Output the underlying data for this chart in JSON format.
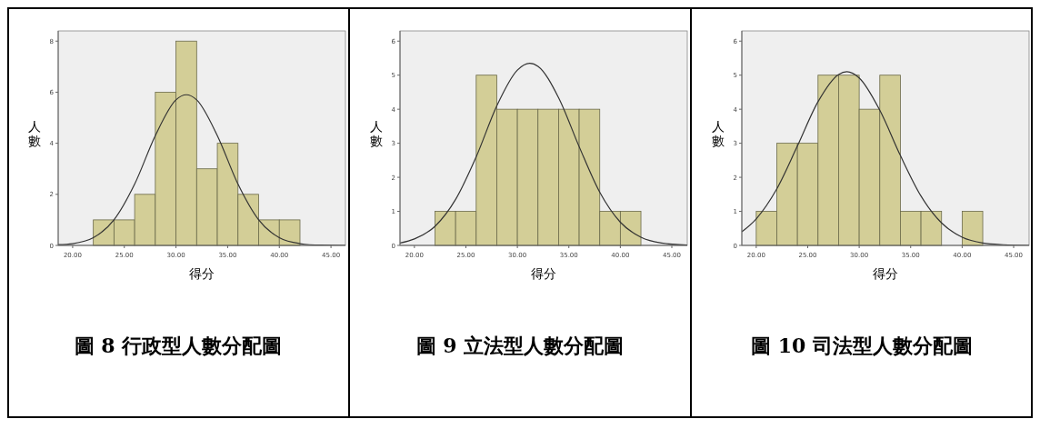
{
  "chart_data": [
    {
      "type": "histogram",
      "title": "圖 8 行政型人數分配圖",
      "xlabel": "得分",
      "ylabel": "人數",
      "bins": [
        22,
        24,
        26,
        28,
        30,
        32,
        34,
        36,
        38,
        40,
        42
      ],
      "values": [
        1,
        1,
        2,
        6,
        8,
        3,
        4,
        2,
        1,
        1
      ],
      "color": "#d3ce97",
      "xlim": [
        18.6,
        46.4
      ],
      "ylim": [
        0,
        8.4
      ],
      "xticks": [
        {
          "value": 20,
          "label": "20.00"
        },
        {
          "value": 25,
          "label": "25.00"
        },
        {
          "value": 30,
          "label": "30.00"
        },
        {
          "value": 35,
          "label": "35.00"
        },
        {
          "value": 40,
          "label": "40.00"
        },
        {
          "value": 45,
          "label": "45.00"
        }
      ],
      "yticks": [
        0,
        2,
        4,
        6,
        8
      ],
      "grid": false,
      "series": [
        {
          "type": "line",
          "color": "#333333",
          "x": [
            18.6,
            20,
            22,
            24,
            26,
            28,
            30,
            31,
            32,
            34,
            36,
            38,
            40,
            42,
            44,
            46.4
          ],
          "values": [
            0.03,
            0.07,
            0.3,
            1,
            2.4,
            4.3,
            5.7,
            5.9,
            5.7,
            4.3,
            2.4,
            1,
            0.3,
            0.07,
            0.01,
            0
          ]
        }
      ]
    },
    {
      "type": "histogram",
      "title": "圖 9 立法型人數分配圖",
      "xlabel": "得分",
      "ylabel": "人數",
      "bins": [
        22,
        24,
        26,
        28,
        30,
        32,
        34,
        36,
        38,
        40,
        42
      ],
      "values": [
        1,
        1,
        5,
        4,
        4,
        4,
        4,
        4,
        1,
        1
      ],
      "color": "#d3ce97",
      "xlim": [
        18.6,
        46.5
      ],
      "ylim": [
        0,
        6.3
      ],
      "xticks": [
        {
          "value": 20,
          "label": "20.00"
        },
        {
          "value": 25,
          "label": "25.00"
        },
        {
          "value": 30,
          "label": "30.00"
        },
        {
          "value": 35,
          "label": "35.00"
        },
        {
          "value": 40,
          "label": "40.00"
        },
        {
          "value": 45,
          "label": "45.00"
        }
      ],
      "yticks": [
        0,
        1,
        2,
        3,
        4,
        5,
        6
      ],
      "grid": false,
      "series": [
        {
          "type": "line",
          "color": "#333333",
          "x": [
            18.6,
            20,
            22,
            24,
            26,
            28,
            30,
            31.2,
            32,
            34,
            36,
            38,
            40,
            42,
            44,
            46.5
          ],
          "values": [
            0.07,
            0.19,
            0.56,
            1.35,
            2.6,
            4.1,
            5.15,
            5.35,
            5.26,
            4.34,
            2.9,
            1.56,
            0.68,
            0.24,
            0.07,
            0.01
          ]
        }
      ]
    },
    {
      "type": "histogram",
      "title": "圖 10 司法型人數分配圖",
      "xlabel": "得分",
      "ylabel": "人數",
      "bins": [
        20,
        22,
        24,
        26,
        28,
        30,
        32,
        34,
        36,
        38,
        40,
        42
      ],
      "values": [
        1,
        3,
        3,
        5,
        5,
        4,
        5,
        1,
        1,
        0,
        1
      ],
      "color": "#d3ce97",
      "xlim": [
        18.6,
        46.5
      ],
      "ylim": [
        0,
        6.3
      ],
      "xticks": [
        {
          "value": 20,
          "label": "20.00"
        },
        {
          "value": 25,
          "label": "25.00"
        },
        {
          "value": 30,
          "label": "30.00"
        },
        {
          "value": 35,
          "label": "35.00"
        },
        {
          "value": 40,
          "label": "40.00"
        },
        {
          "value": 45,
          "label": "45.00"
        }
      ],
      "yticks": [
        0,
        1,
        2,
        3,
        4,
        5,
        6
      ],
      "grid": false,
      "series": [
        {
          "type": "line",
          "color": "#333333",
          "x": [
            18.6,
            20,
            22,
            24,
            26,
            28,
            28.8,
            30,
            32,
            34,
            36,
            38,
            40,
            42,
            44,
            46.5
          ],
          "values": [
            0.4,
            0.78,
            1.66,
            2.92,
            4.22,
            5.02,
            5.1,
            4.92,
            3.97,
            2.64,
            1.45,
            0.66,
            0.24,
            0.07,
            0.02,
            0
          ]
        }
      ]
    }
  ]
}
